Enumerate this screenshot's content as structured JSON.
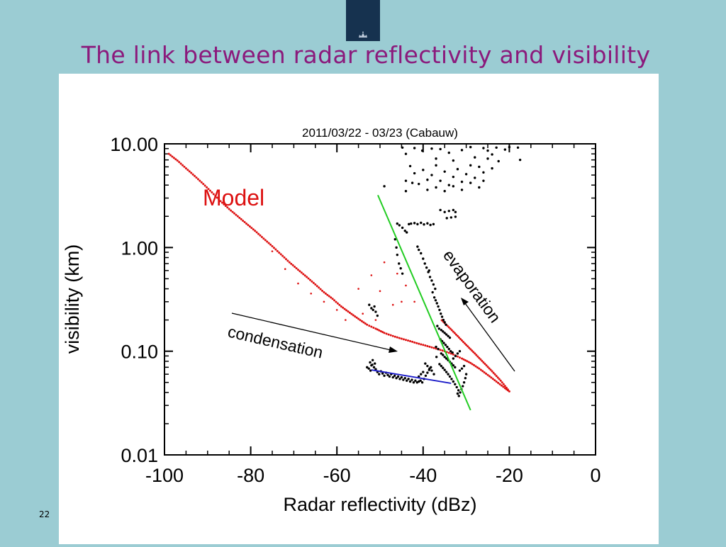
{
  "slide": {
    "title": "The link between radar reflectivity and visibility",
    "page_number": "22"
  },
  "colors": {
    "background": "#9bccd3",
    "title": "#8b1a7c",
    "logo": "#16324f",
    "model": "#dd1111",
    "green_fit": "#22cc22",
    "blue_fit": "#1a1ac8",
    "observations": "#000000"
  },
  "chart_data": {
    "type": "scatter",
    "title": "2011/03/22 - 03/23 (Cabauw)",
    "xlabel": "Radar reflectivity (dBz)",
    "ylabel": "visibility (km)",
    "xlim": [
      -100,
      0
    ],
    "ylim": [
      0.01,
      10
    ],
    "y_scale": "log",
    "grid": false,
    "x_ticks": [
      "-100",
      "-80",
      "-60",
      "-40",
      "-20",
      "0"
    ],
    "x_tick_values": [
      -100,
      -80,
      -60,
      -40,
      -20,
      0
    ],
    "y_ticks": [
      "10.00",
      "1.00",
      "0.10",
      "0.01"
    ],
    "y_tick_values": [
      10,
      1,
      0.1,
      0.01
    ],
    "annotations": {
      "model": "Model",
      "evaporation": "evaporation",
      "condensation": "condensation"
    },
    "series": [
      {
        "name": "Model",
        "kind": "curve",
        "points": [
          [
            -99,
            8.0
          ],
          [
            -97,
            6.9
          ],
          [
            -95,
            5.8
          ],
          [
            -93,
            4.9
          ],
          [
            -91,
            4.1
          ],
          [
            -89,
            3.4
          ],
          [
            -87,
            2.8
          ],
          [
            -85,
            2.35
          ],
          [
            -83,
            2.0
          ],
          [
            -81,
            1.7
          ],
          [
            -79,
            1.45
          ],
          [
            -77,
            1.22
          ],
          [
            -75,
            1.03
          ],
          [
            -73,
            0.86
          ],
          [
            -71,
            0.72
          ],
          [
            -69,
            0.61
          ],
          [
            -67,
            0.52
          ],
          [
            -65,
            0.44
          ],
          [
            -63,
            0.37
          ],
          [
            -61,
            0.32
          ],
          [
            -59,
            0.27
          ],
          [
            -57,
            0.235
          ],
          [
            -55,
            0.205
          ],
          [
            -53,
            0.18
          ],
          [
            -51,
            0.165
          ],
          [
            -49,
            0.15
          ],
          [
            -47,
            0.14
          ],
          [
            -45,
            0.132
          ],
          [
            -43,
            0.125
          ],
          [
            -41,
            0.118
          ],
          [
            -39,
            0.112
          ],
          [
            -37,
            0.106
          ],
          [
            -35,
            0.1
          ],
          [
            -33,
            0.093
          ],
          [
            -31,
            0.085
          ],
          [
            -29,
            0.077
          ],
          [
            -27,
            0.068
          ],
          [
            -25,
            0.059
          ],
          [
            -23,
            0.051
          ],
          [
            -21,
            0.044
          ],
          [
            -20,
            0.041
          ],
          [
            -22,
            0.052
          ],
          [
            -24,
            0.064
          ],
          [
            -26,
            0.078
          ],
          [
            -28,
            0.095
          ],
          [
            -30,
            0.115
          ],
          [
            -32,
            0.14
          ],
          [
            -34,
            0.17
          ],
          [
            -36,
            0.205
          ]
        ],
        "scattered_points": [
          [
            -75,
            0.92
          ],
          [
            -72,
            0.62
          ],
          [
            -69,
            0.45
          ],
          [
            -66,
            0.36
          ],
          [
            -63,
            0.3
          ],
          [
            -60,
            0.25
          ],
          [
            -58,
            0.2
          ],
          [
            -55,
            0.4
          ],
          [
            -54,
            0.23
          ],
          [
            -52,
            0.54
          ],
          [
            -51,
            0.2
          ],
          [
            -50,
            0.38
          ],
          [
            -49,
            0.72
          ],
          [
            -47,
            0.28
          ],
          [
            -46,
            0.56
          ],
          [
            -45,
            0.3
          ],
          [
            -44,
            0.43
          ],
          [
            -42,
            0.3
          ]
        ]
      },
      {
        "name": "green-fit",
        "kind": "line",
        "points": [
          [
            -50.5,
            3.2
          ],
          [
            -29,
            0.027
          ]
        ]
      },
      {
        "name": "blue-fit",
        "kind": "line",
        "points": [
          [
            -52,
            0.066
          ],
          [
            -33.5,
            0.049
          ]
        ]
      },
      {
        "name": "observations",
        "kind": "scatter",
        "points": [
          [
            -44.8,
            9.2
          ],
          [
            -44,
            8.0
          ],
          [
            -42,
            9.1
          ],
          [
            -40.2,
            8.6
          ],
          [
            -38,
            9.0
          ],
          [
            -37,
            7.2
          ],
          [
            -36,
            8.9
          ],
          [
            -34,
            8.2
          ],
          [
            -33,
            6.9
          ],
          [
            -31,
            8.7
          ],
          [
            -29,
            9.3
          ],
          [
            -28,
            7.4
          ],
          [
            -26,
            9.1
          ],
          [
            -25,
            8.6
          ],
          [
            -24,
            7.9
          ],
          [
            -23,
            9.2
          ],
          [
            -21,
            8.8
          ],
          [
            -20,
            9.3
          ],
          [
            -18,
            9.2
          ],
          [
            -17.5,
            7.0
          ],
          [
            -43,
            6.1
          ],
          [
            -42,
            5.2
          ],
          [
            -40,
            5.6
          ],
          [
            -39,
            4.5
          ],
          [
            -38,
            5.0
          ],
          [
            -37,
            6.2
          ],
          [
            -36,
            4.4
          ],
          [
            -35,
            5.4
          ],
          [
            -34,
            4.0
          ],
          [
            -33,
            4.8
          ],
          [
            -32,
            5.7
          ],
          [
            -31,
            4.3
          ],
          [
            -30,
            5.1
          ],
          [
            -29,
            6.2
          ],
          [
            -28,
            4.7
          ],
          [
            -27,
            6.0
          ],
          [
            -26,
            5.3
          ],
          [
            -25,
            7.2
          ],
          [
            -24,
            5.8
          ],
          [
            -22.5,
            6.8
          ],
          [
            -44,
            4.4
          ],
          [
            -41,
            4.1
          ],
          [
            -39,
            3.6
          ],
          [
            -37,
            3.8
          ],
          [
            -35,
            3.5
          ],
          [
            -33,
            3.9
          ],
          [
            -31,
            3.6
          ],
          [
            -29,
            4.2
          ],
          [
            -27,
            3.8
          ],
          [
            -26,
            4.4
          ],
          [
            -44,
            3.5
          ],
          [
            -42.5,
            4.2
          ],
          [
            -49,
            3.9
          ],
          [
            -36,
            2.3
          ],
          [
            -35,
            2.2
          ],
          [
            -34,
            2.25
          ],
          [
            -33,
            2.3
          ],
          [
            -32.5,
            2.2
          ],
          [
            -34.5,
            1.92
          ],
          [
            -33.5,
            1.95
          ],
          [
            -32.5,
            1.98
          ],
          [
            -46,
            1.7
          ],
          [
            -45.5,
            1.64
          ],
          [
            -44.8,
            1.55
          ],
          [
            -44.2,
            1.45
          ],
          [
            -43.8,
            1.4
          ],
          [
            -43.3,
            1.68
          ],
          [
            -42.8,
            1.7
          ],
          [
            -42,
            1.72
          ],
          [
            -41.3,
            1.68
          ],
          [
            -40.5,
            1.73
          ],
          [
            -39.8,
            1.67
          ],
          [
            -39,
            1.71
          ],
          [
            -38.3,
            1.65
          ],
          [
            -37.6,
            1.68
          ],
          [
            -46.5,
            1.2
          ],
          [
            -46.2,
            1.0
          ],
          [
            -46,
            0.85
          ],
          [
            -45.6,
            0.7
          ],
          [
            -45.2,
            0.63
          ],
          [
            -44.8,
            0.56
          ],
          [
            -40,
            0.78
          ],
          [
            -39.6,
            0.7
          ],
          [
            -39.2,
            0.64
          ],
          [
            -38.8,
            0.58
          ],
          [
            -38.4,
            0.52
          ],
          [
            -38,
            0.48
          ],
          [
            -37.6,
            0.44
          ],
          [
            -37.2,
            0.4
          ],
          [
            -40.5,
            0.88
          ],
          [
            -41,
            0.95
          ],
          [
            -41.3,
            1.02
          ],
          [
            -38.6,
            0.6
          ],
          [
            -37.8,
            0.37
          ],
          [
            -37.4,
            0.33
          ],
          [
            -37.1,
            0.31
          ],
          [
            -36.8,
            0.29
          ],
          [
            -36.5,
            0.27
          ],
          [
            -36.2,
            0.25
          ],
          [
            -35.9,
            0.23
          ],
          [
            -35.6,
            0.215
          ],
          [
            -35.3,
            0.2
          ],
          [
            -35.0,
            0.19
          ],
          [
            -34.7,
            0.18
          ],
          [
            -36.7,
            0.175
          ],
          [
            -36.3,
            0.165
          ],
          [
            -35.8,
            0.16
          ],
          [
            -35.4,
            0.155
          ],
          [
            -35.0,
            0.15
          ],
          [
            -34.6,
            0.145
          ],
          [
            -34.2,
            0.14
          ],
          [
            -33.8,
            0.135
          ],
          [
            -36.0,
            0.13
          ],
          [
            -35.6,
            0.125
          ],
          [
            -35.2,
            0.12
          ],
          [
            -34.8,
            0.115
          ],
          [
            -34.4,
            0.11
          ],
          [
            -34.0,
            0.105
          ],
          [
            -33.6,
            0.1
          ],
          [
            -33.2,
            0.097
          ],
          [
            -35.8,
            0.095
          ],
          [
            -35.4,
            0.092
          ],
          [
            -35.0,
            0.088
          ],
          [
            -34.6,
            0.085
          ],
          [
            -34.2,
            0.082
          ],
          [
            -33.8,
            0.079
          ],
          [
            -33.4,
            0.076
          ],
          [
            -33.0,
            0.073
          ],
          [
            -32.6,
            0.07
          ],
          [
            -36.2,
            0.075
          ],
          [
            -35.8,
            0.072
          ],
          [
            -35.4,
            0.069
          ],
          [
            -35.0,
            0.066
          ],
          [
            -34.6,
            0.063
          ],
          [
            -34.2,
            0.06
          ],
          [
            -33.8,
            0.057
          ],
          [
            -33.4,
            0.054
          ],
          [
            -33.0,
            0.051
          ],
          [
            -32.6,
            0.048
          ],
          [
            -32.2,
            0.045
          ],
          [
            -31.8,
            0.042
          ],
          [
            -32.0,
            0.039
          ],
          [
            -31.7,
            0.037
          ],
          [
            -31.4,
            0.04
          ],
          [
            -31.1,
            0.043
          ],
          [
            -30.8,
            0.046
          ],
          [
            -30.5,
            0.05
          ],
          [
            -30.2,
            0.055
          ],
          [
            -30.0,
            0.06
          ],
          [
            -31.5,
            0.065
          ],
          [
            -31.0,
            0.068
          ],
          [
            -30.5,
            0.072
          ],
          [
            -33.0,
            0.085
          ],
          [
            -32.5,
            0.09
          ],
          [
            -32.0,
            0.095
          ],
          [
            -31.5,
            0.1
          ],
          [
            -36.5,
            0.105
          ],
          [
            -37.0,
            0.11
          ],
          [
            -37.5,
            0.06
          ],
          [
            -38.0,
            0.065
          ],
          [
            -38.5,
            0.068
          ],
          [
            -39.0,
            0.072
          ],
          [
            -39.5,
            0.076
          ],
          [
            -36.9,
            0.088
          ],
          [
            -52.5,
            0.28
          ],
          [
            -52.0,
            0.26
          ],
          [
            -51.6,
            0.25
          ],
          [
            -51.3,
            0.27
          ],
          [
            -51.0,
            0.24
          ],
          [
            -50.6,
            0.22
          ],
          [
            -53.0,
            0.07
          ],
          [
            -52.6,
            0.068
          ],
          [
            -52.2,
            0.065
          ],
          [
            -51.8,
            0.074
          ],
          [
            -51.4,
            0.07
          ],
          [
            -51.0,
            0.067
          ],
          [
            -50.6,
            0.063
          ],
          [
            -50.2,
            0.06
          ],
          [
            -49.8,
            0.064
          ],
          [
            -49.4,
            0.061
          ],
          [
            -49.0,
            0.058
          ],
          [
            -48.6,
            0.062
          ],
          [
            -48.2,
            0.059
          ],
          [
            -47.8,
            0.057
          ],
          [
            -47.4,
            0.06
          ],
          [
            -47.0,
            0.056
          ],
          [
            -46.6,
            0.058
          ],
          [
            -46.2,
            0.055
          ],
          [
            -45.8,
            0.057
          ],
          [
            -45.4,
            0.054
          ],
          [
            -45.0,
            0.056
          ],
          [
            -44.6,
            0.053
          ],
          [
            -44.2,
            0.055
          ],
          [
            -43.8,
            0.052
          ],
          [
            -43.4,
            0.054
          ],
          [
            -43.0,
            0.051
          ],
          [
            -42.6,
            0.053
          ],
          [
            -42.2,
            0.05
          ],
          [
            -41.8,
            0.052
          ],
          [
            -41.4,
            0.05
          ],
          [
            -41.0,
            0.051
          ],
          [
            -40.6,
            0.052
          ],
          [
            -40.2,
            0.05
          ],
          [
            -39.8,
            0.054
          ],
          [
            -39.4,
            0.058
          ],
          [
            -39.0,
            0.062
          ],
          [
            -38.6,
            0.066
          ],
          [
            -38.2,
            0.07
          ],
          [
            -41.0,
            0.057
          ],
          [
            -40.5,
            0.06
          ],
          [
            -40.0,
            0.063
          ],
          [
            -52.0,
            0.073
          ],
          [
            -52.3,
            0.078
          ],
          [
            -51.7,
            0.082
          ],
          [
            -51.2,
            0.076
          ]
        ]
      }
    ]
  }
}
